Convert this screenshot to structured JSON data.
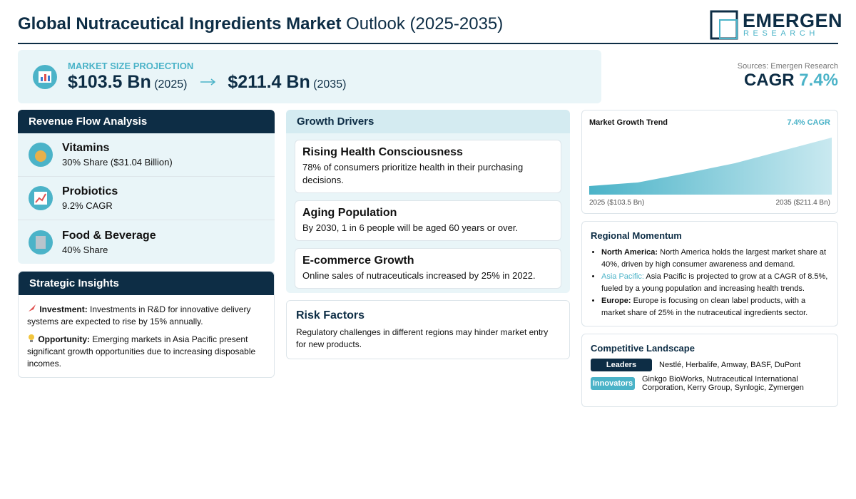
{
  "header": {
    "title_bold": "Global Nutraceutical Ingredients Market",
    "title_rest": "Outlook (2025-2035)",
    "logo_main": "EMERGEN",
    "logo_sub": "RESEARCH"
  },
  "summary": {
    "label": "MARKET SIZE PROJECTION",
    "start_value": "$103.5 Bn",
    "start_year": "(2025)",
    "end_value": "$211.4 Bn",
    "end_year": "(2035)",
    "source": "Sources: Emergen Research",
    "cagr_label": "CAGR",
    "cagr_value": "7.4%"
  },
  "revenue_flow": {
    "title": "Revenue Flow Analysis",
    "items": [
      {
        "name": "Vitamins",
        "detail": "30% Share ($31.04 Billion)"
      },
      {
        "name": "Probiotics",
        "detail": "9.2% CAGR"
      },
      {
        "name": "Food & Beverage",
        "detail": "40% Share"
      }
    ]
  },
  "strategic_insights": {
    "title": "Strategic Insights",
    "items": [
      {
        "label": "Investment:",
        "text": "Investments in R&D for innovative delivery systems are expected to rise by 15% annually."
      },
      {
        "label": "Opportunity:",
        "text": "Emerging markets in Asia Pacific present significant growth opportunities due to increasing disposable incomes."
      }
    ]
  },
  "growth_drivers": {
    "title": "Growth Drivers",
    "items": [
      {
        "title": "Rising Health Consciousness",
        "text": "78% of consumers prioritize health in their purchasing decisions."
      },
      {
        "title": "Aging Population",
        "text": "By 2030, 1 in 6 people will be aged 60 years or over."
      },
      {
        "title": "E-commerce Growth",
        "text": "Online sales of nutraceuticals increased by 25% in 2022."
      }
    ]
  },
  "risk_factors": {
    "title": "Risk Factors",
    "text": "Regulatory challenges in different regions may hinder market entry for new products."
  },
  "trend": {
    "title": "Market Growth Trend",
    "badge": "7.4% CAGR",
    "start_label": "2025 ($103.5 Bn)",
    "end_label": "2035 ($211.4 Bn)"
  },
  "regional": {
    "title": "Regional Momentum",
    "items": [
      {
        "region": "North America:",
        "text": "North America holds the largest market share at 40%, driven by high consumer awareness and demand."
      },
      {
        "region": "Asia Pacific:",
        "text": "Asia Pacific is projected to grow at a CAGR of 8.5%, fueled by a young population and increasing health trends."
      },
      {
        "region": "Europe:",
        "text": "Europe is focusing on clean label products, with a market share of 25% in the nutraceutical ingredients sector."
      }
    ]
  },
  "competitive": {
    "title": "Competitive Landscape",
    "groups": [
      {
        "label": "Leaders",
        "companies": "Nestlé, Herbalife, Amway, BASF, DuPont"
      },
      {
        "label": "Innovators",
        "companies": "Ginkgo BioWorks, Nutraceutical International Corporation, Kerry Group, Synlogic, Zymergen"
      }
    ]
  }
}
